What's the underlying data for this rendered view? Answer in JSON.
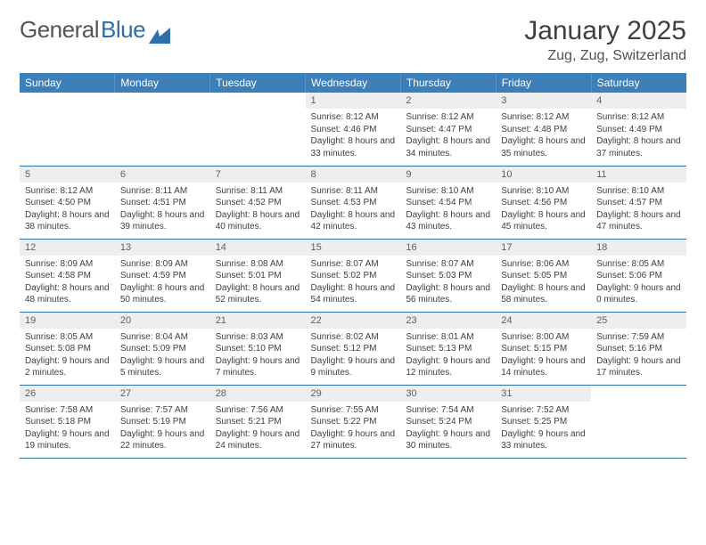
{
  "logo": {
    "word1": "General",
    "word2": "Blue"
  },
  "title": "January 2025",
  "subtitle": "Zug, Zug, Switzerland",
  "colors": {
    "header_bg": "#3d7fb8",
    "header_text": "#ffffff",
    "daynum_bg": "#eceeef",
    "rule": "#2f6fa8",
    "logo_gray": "#555555",
    "logo_blue": "#2f6fa8"
  },
  "weekdays": [
    "Sunday",
    "Monday",
    "Tuesday",
    "Wednesday",
    "Thursday",
    "Friday",
    "Saturday"
  ],
  "weeks": [
    [
      null,
      null,
      null,
      {
        "n": "1",
        "sunrise": "8:12 AM",
        "sunset": "4:46 PM",
        "daylight": "8 hours and 33 minutes."
      },
      {
        "n": "2",
        "sunrise": "8:12 AM",
        "sunset": "4:47 PM",
        "daylight": "8 hours and 34 minutes."
      },
      {
        "n": "3",
        "sunrise": "8:12 AM",
        "sunset": "4:48 PM",
        "daylight": "8 hours and 35 minutes."
      },
      {
        "n": "4",
        "sunrise": "8:12 AM",
        "sunset": "4:49 PM",
        "daylight": "8 hours and 37 minutes."
      }
    ],
    [
      {
        "n": "5",
        "sunrise": "8:12 AM",
        "sunset": "4:50 PM",
        "daylight": "8 hours and 38 minutes."
      },
      {
        "n": "6",
        "sunrise": "8:11 AM",
        "sunset": "4:51 PM",
        "daylight": "8 hours and 39 minutes."
      },
      {
        "n": "7",
        "sunrise": "8:11 AM",
        "sunset": "4:52 PM",
        "daylight": "8 hours and 40 minutes."
      },
      {
        "n": "8",
        "sunrise": "8:11 AM",
        "sunset": "4:53 PM",
        "daylight": "8 hours and 42 minutes."
      },
      {
        "n": "9",
        "sunrise": "8:10 AM",
        "sunset": "4:54 PM",
        "daylight": "8 hours and 43 minutes."
      },
      {
        "n": "10",
        "sunrise": "8:10 AM",
        "sunset": "4:56 PM",
        "daylight": "8 hours and 45 minutes."
      },
      {
        "n": "11",
        "sunrise": "8:10 AM",
        "sunset": "4:57 PM",
        "daylight": "8 hours and 47 minutes."
      }
    ],
    [
      {
        "n": "12",
        "sunrise": "8:09 AM",
        "sunset": "4:58 PM",
        "daylight": "8 hours and 48 minutes."
      },
      {
        "n": "13",
        "sunrise": "8:09 AM",
        "sunset": "4:59 PM",
        "daylight": "8 hours and 50 minutes."
      },
      {
        "n": "14",
        "sunrise": "8:08 AM",
        "sunset": "5:01 PM",
        "daylight": "8 hours and 52 minutes."
      },
      {
        "n": "15",
        "sunrise": "8:07 AM",
        "sunset": "5:02 PM",
        "daylight": "8 hours and 54 minutes."
      },
      {
        "n": "16",
        "sunrise": "8:07 AM",
        "sunset": "5:03 PM",
        "daylight": "8 hours and 56 minutes."
      },
      {
        "n": "17",
        "sunrise": "8:06 AM",
        "sunset": "5:05 PM",
        "daylight": "8 hours and 58 minutes."
      },
      {
        "n": "18",
        "sunrise": "8:05 AM",
        "sunset": "5:06 PM",
        "daylight": "9 hours and 0 minutes."
      }
    ],
    [
      {
        "n": "19",
        "sunrise": "8:05 AM",
        "sunset": "5:08 PM",
        "daylight": "9 hours and 2 minutes."
      },
      {
        "n": "20",
        "sunrise": "8:04 AM",
        "sunset": "5:09 PM",
        "daylight": "9 hours and 5 minutes."
      },
      {
        "n": "21",
        "sunrise": "8:03 AM",
        "sunset": "5:10 PM",
        "daylight": "9 hours and 7 minutes."
      },
      {
        "n": "22",
        "sunrise": "8:02 AM",
        "sunset": "5:12 PM",
        "daylight": "9 hours and 9 minutes."
      },
      {
        "n": "23",
        "sunrise": "8:01 AM",
        "sunset": "5:13 PM",
        "daylight": "9 hours and 12 minutes."
      },
      {
        "n": "24",
        "sunrise": "8:00 AM",
        "sunset": "5:15 PM",
        "daylight": "9 hours and 14 minutes."
      },
      {
        "n": "25",
        "sunrise": "7:59 AM",
        "sunset": "5:16 PM",
        "daylight": "9 hours and 17 minutes."
      }
    ],
    [
      {
        "n": "26",
        "sunrise": "7:58 AM",
        "sunset": "5:18 PM",
        "daylight": "9 hours and 19 minutes."
      },
      {
        "n": "27",
        "sunrise": "7:57 AM",
        "sunset": "5:19 PM",
        "daylight": "9 hours and 22 minutes."
      },
      {
        "n": "28",
        "sunrise": "7:56 AM",
        "sunset": "5:21 PM",
        "daylight": "9 hours and 24 minutes."
      },
      {
        "n": "29",
        "sunrise": "7:55 AM",
        "sunset": "5:22 PM",
        "daylight": "9 hours and 27 minutes."
      },
      {
        "n": "30",
        "sunrise": "7:54 AM",
        "sunset": "5:24 PM",
        "daylight": "9 hours and 30 minutes."
      },
      {
        "n": "31",
        "sunrise": "7:52 AM",
        "sunset": "5:25 PM",
        "daylight": "9 hours and 33 minutes."
      },
      null
    ]
  ],
  "labels": {
    "sunrise": "Sunrise:",
    "sunset": "Sunset:",
    "daylight": "Daylight:"
  }
}
